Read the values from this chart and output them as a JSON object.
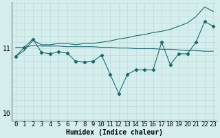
{
  "xlabel": "Humidex (Indice chaleur)",
  "bg_color": "#d4eeee",
  "line_color": "#1a6b6b",
  "grid_color": "#c0dada",
  "x_values": [
    0,
    1,
    2,
    3,
    4,
    5,
    6,
    7,
    8,
    9,
    10,
    11,
    12,
    13,
    14,
    15,
    16,
    17,
    18,
    19,
    20,
    21,
    22,
    23
  ],
  "y_main": [
    10.88,
    11.02,
    11.15,
    10.94,
    10.92,
    10.95,
    10.93,
    10.8,
    10.79,
    10.8,
    10.9,
    10.6,
    10.3,
    10.6,
    10.67,
    10.67,
    10.67,
    11.1,
    10.75,
    10.92,
    10.92,
    11.1,
    11.42,
    11.35
  ],
  "y_upper": [
    10.88,
    10.97,
    11.13,
    11.06,
    11.06,
    11.08,
    11.08,
    11.06,
    11.08,
    11.08,
    11.1,
    11.12,
    11.15,
    11.17,
    11.2,
    11.22,
    11.25,
    11.27,
    11.3,
    11.35,
    11.4,
    11.5,
    11.65,
    11.58
  ],
  "y_flat": [
    11.02,
    11.02,
    11.05,
    11.04,
    11.04,
    11.04,
    11.03,
    11.03,
    11.03,
    11.03,
    11.02,
    11.02,
    11.01,
    11.01,
    11.0,
    11.0,
    11.0,
    10.99,
    10.99,
    10.98,
    10.97,
    10.97,
    10.96,
    10.96
  ],
  "ylim_min": 9.88,
  "ylim_max": 11.72,
  "yticks": [
    10,
    11
  ],
  "xlabel_fontsize": 7,
  "tick_fontsize": 6.5
}
